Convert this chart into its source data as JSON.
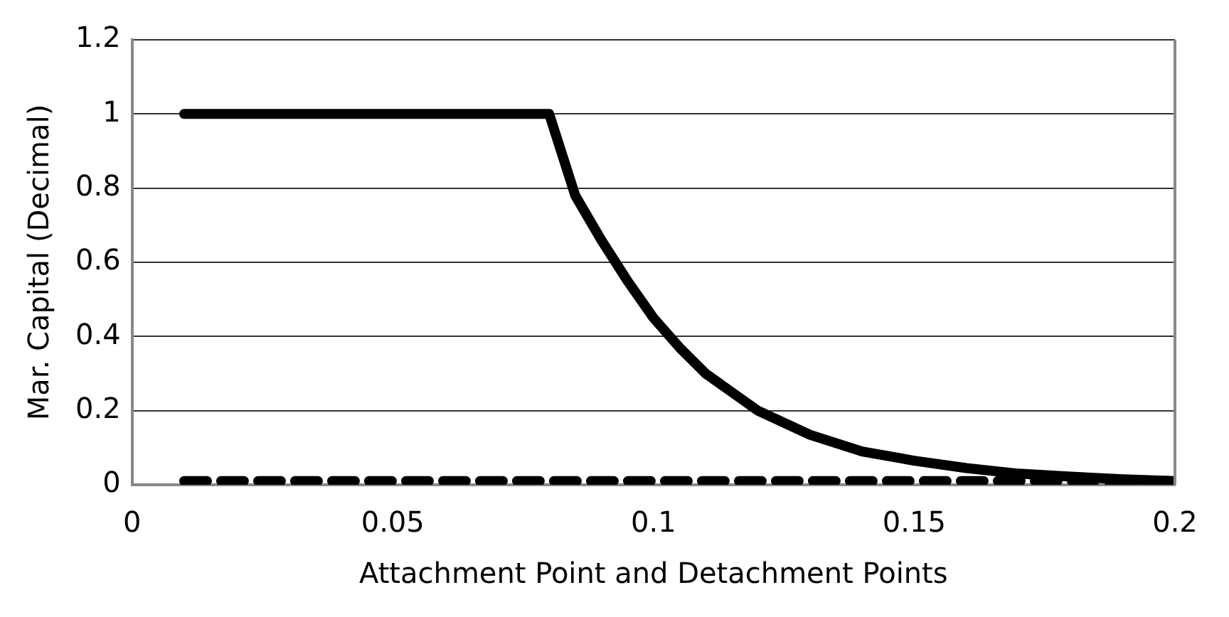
{
  "chart_data": {
    "type": "line",
    "xlabel": "Attachment Point and Detachment Points",
    "ylabel": "Mar. Capital (Decimal)",
    "xlim": [
      0,
      0.2
    ],
    "xticks": [
      0,
      0.05,
      0.1,
      0.15,
      0.2
    ],
    "ylim": [
      0,
      1.2
    ],
    "yticks": [
      0,
      0.2,
      0.4,
      0.6,
      0.8,
      1,
      1.2
    ],
    "grid": "y",
    "legend": false,
    "marker": "none",
    "series": [
      {
        "color": "#000000",
        "line_style": "solid",
        "x": [
          0.01,
          0.08,
          0.085,
          0.09,
          0.095,
          0.1,
          0.105,
          0.11,
          0.12,
          0.13,
          0.14,
          0.15,
          0.16,
          0.17,
          0.18,
          0.19,
          0.2
        ],
        "values": [
          1,
          1,
          0.78,
          0.66,
          0.55,
          0.45,
          0.37,
          0.3,
          0.2,
          0.135,
          0.09,
          0.065,
          0.045,
          0.03,
          0.022,
          0.015,
          0.01
        ]
      },
      {
        "color": "#000000",
        "line_style": "dashed",
        "x": [
          0.01,
          0.2
        ],
        "values": [
          0.01,
          0.01
        ]
      }
    ]
  }
}
